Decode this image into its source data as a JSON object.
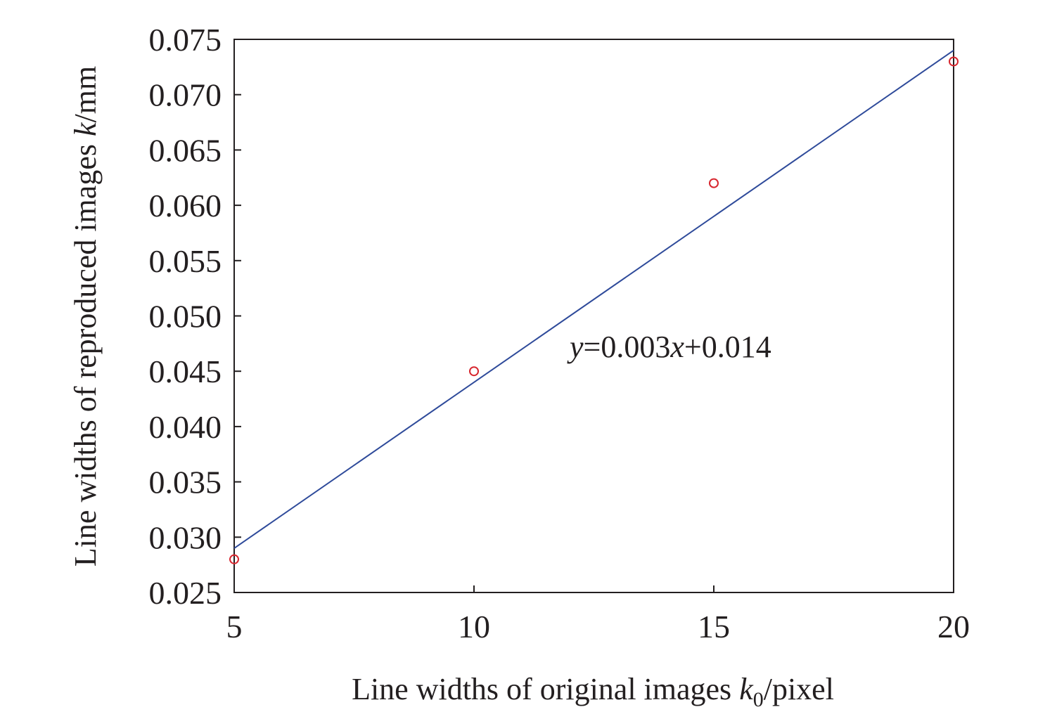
{
  "chart_data": {
    "type": "scatter",
    "x": [
      5,
      10,
      15,
      20
    ],
    "series": [
      {
        "color": "#d7262e",
        "values": [
          0.028,
          0.045,
          0.062,
          0.073
        ]
      }
    ],
    "fit": {
      "slope": 0.003,
      "intercept": 0.014,
      "color": "#2e4a9a"
    },
    "annotation_parts": [
      "y",
      "=0.003",
      "x",
      "+0.014"
    ],
    "xlabel_parts": [
      "Line widths of original images ",
      "k",
      "0",
      "/pixel"
    ],
    "ylabel_parts": [
      "Line widths of reproduced images ",
      "k",
      "/mm"
    ],
    "xlim": [
      5,
      20
    ],
    "xticks": [
      5,
      10,
      15,
      20
    ],
    "ylim": [
      0.025,
      0.075
    ],
    "yticks": [
      0.025,
      {
        "value": 0.03,
        "label": "0.030"
      },
      0.035,
      {
        "value": 0.04,
        "label": "0.040"
      },
      0.045,
      {
        "value": 0.05,
        "label": "0.050"
      },
      0.055,
      {
        "value": 0.06,
        "label": "0.060"
      },
      0.065,
      {
        "value": 0.07,
        "label": "0.070"
      },
      0.075
    ],
    "grid": false
  }
}
